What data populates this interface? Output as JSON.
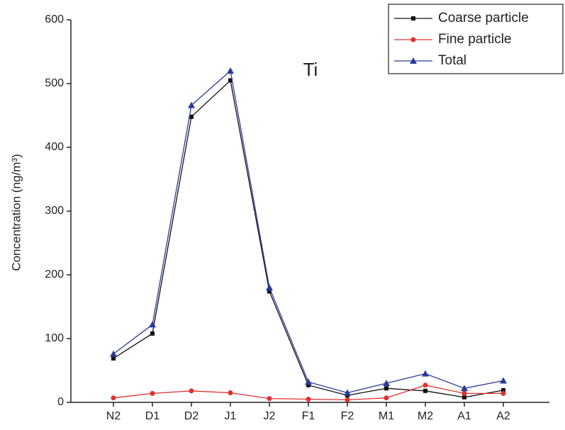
{
  "chart_data": {
    "type": "line",
    "annotation": "Ti",
    "ylabel": "Concentration (ng/m³)",
    "categories": [
      "N2",
      "D1",
      "D2",
      "J1",
      "J2",
      "F1",
      "F2",
      "M1",
      "M2",
      "A1",
      "A2"
    ],
    "series": [
      {
        "name": "Coarse particle",
        "color": "#111111",
        "marker": "square",
        "values": [
          69,
          108,
          448,
          505,
          174,
          27,
          11,
          22,
          18,
          8,
          19
        ]
      },
      {
        "name": "Fine particle",
        "color": "#e03030",
        "marker": "circle",
        "values": [
          7,
          14,
          18,
          15,
          6,
          5,
          4,
          7,
          27,
          14,
          14
        ]
      },
      {
        "name": "Total",
        "color": "#2a3a9a",
        "marker": "triangle",
        "values": [
          76,
          122,
          466,
          520,
          180,
          32,
          15,
          30,
          45,
          22,
          34
        ]
      }
    ],
    "ylim": [
      0,
      600
    ],
    "yticks": [
      0,
      100,
      200,
      300,
      400,
      500,
      600
    ],
    "legend": "top-right"
  }
}
